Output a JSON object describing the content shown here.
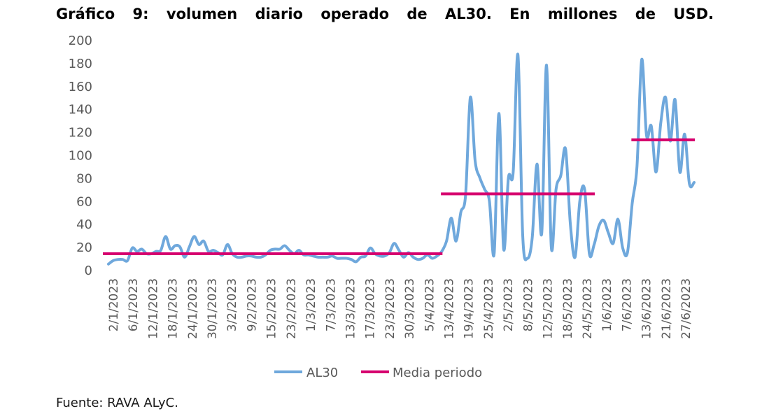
{
  "title": "Gráfico 9: volumen diario operado de AL30. En millones de USD.",
  "source": "Fuente: RAVA ALyC.",
  "chart_data": {
    "type": "line",
    "title": "Gráfico 9: volumen diario operado de AL30. En millones de USD.",
    "xlabel": "",
    "ylabel": "",
    "ylim": [
      0,
      200
    ],
    "yticks": [
      0,
      20,
      40,
      60,
      80,
      100,
      120,
      140,
      160,
      180,
      200
    ],
    "grid": false,
    "legend_position": "bottom",
    "x_tick_labels": [
      "2/1/2023",
      "6/1/2023",
      "12/1/2023",
      "18/1/2023",
      "24/1/2023",
      "30/1/2023",
      "3/2/2023",
      "9/2/2023",
      "15/2/2023",
      "23/2/2023",
      "1/3/2023",
      "7/3/2023",
      "13/3/2023",
      "17/3/2023",
      "23/3/2023",
      "30/3/2023",
      "5/4/2023",
      "13/4/2023",
      "19/4/2023",
      "25/4/2023",
      "2/5/2023",
      "8/5/2023",
      "12/5/2023",
      "18/5/2023",
      "24/5/2023",
      "1/6/2023",
      "7/6/2023",
      "13/6/2023",
      "21/6/2023",
      "27/6/2023"
    ],
    "series": [
      {
        "name": "AL30",
        "color": "#6FA8DC",
        "style": "smooth-line",
        "values": [
          5,
          8,
          9,
          9,
          8,
          19,
          16,
          18,
          14,
          14,
          16,
          17,
          29,
          18,
          21,
          20,
          11,
          20,
          29,
          22,
          25,
          16,
          17,
          15,
          13,
          22,
          14,
          11,
          11,
          12,
          12,
          11,
          11,
          13,
          17,
          18,
          18,
          21,
          17,
          14,
          17,
          13,
          13,
          12,
          11,
          11,
          11,
          12,
          10,
          10,
          10,
          9,
          7,
          11,
          12,
          19,
          14,
          12,
          12,
          15,
          23,
          17,
          11,
          15,
          11,
          9,
          10,
          13,
          10,
          12,
          16,
          25,
          45,
          25,
          50,
          65,
          150,
          95,
          80,
          70,
          60,
          14,
          136,
          18,
          80,
          85,
          187,
          30,
          10,
          28,
          92,
          32,
          178,
          20,
          70,
          82,
          105,
          40,
          11,
          60,
          70,
          14,
          22,
          38,
          43,
          32,
          23,
          44,
          19,
          15,
          58,
          90,
          183,
          117,
          125,
          85,
          128,
          150,
          112,
          148,
          85,
          118,
          75,
          76
        ]
      },
      {
        "name": "Media periodo",
        "color": "#D6006F",
        "style": "segments",
        "segments": [
          {
            "x_start_index": 0,
            "x_end_index": 70,
            "value": 14
          },
          {
            "x_start_index": 71,
            "x_end_index": 102,
            "value": 66
          },
          {
            "x_start_index": 111,
            "x_end_index": 123,
            "value": 113
          }
        ]
      }
    ]
  }
}
